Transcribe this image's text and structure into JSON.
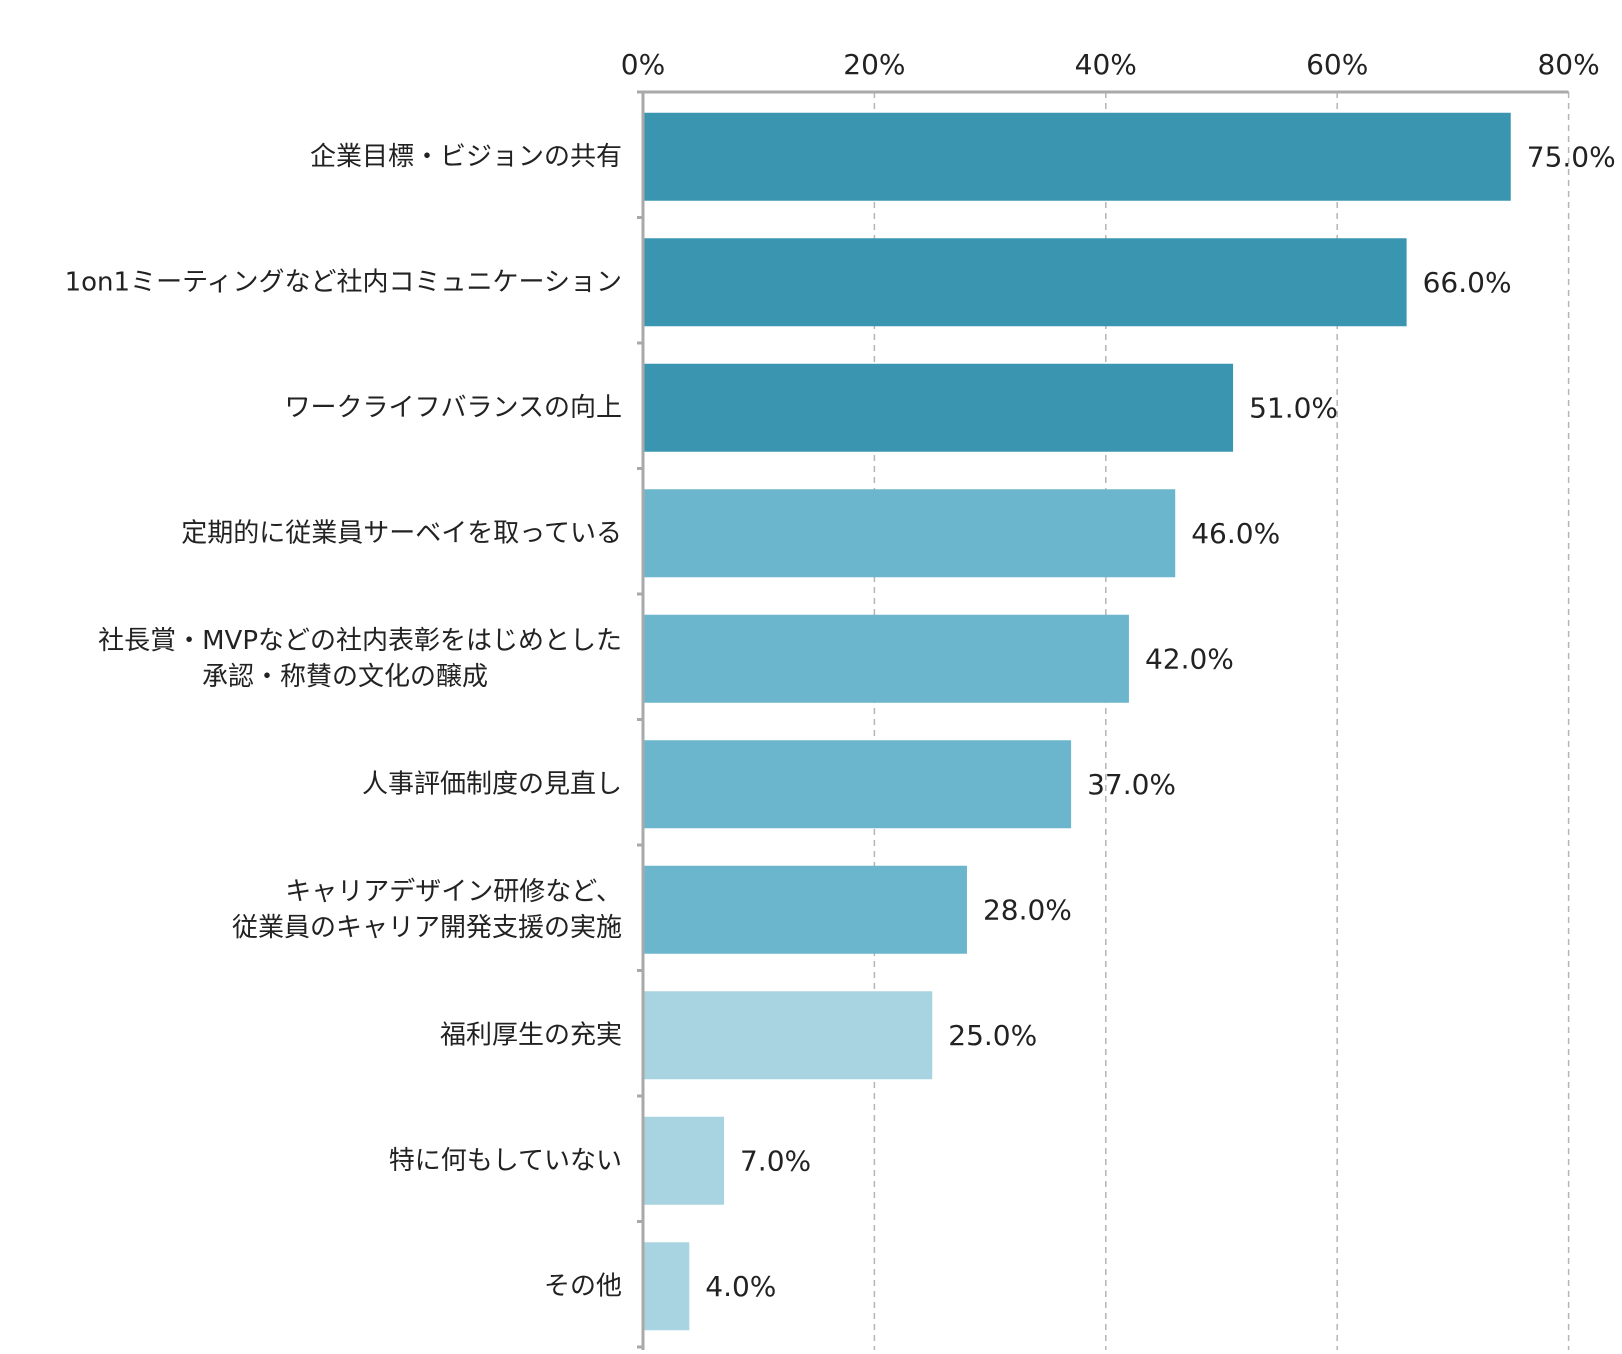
{
  "chart_data": {
    "type": "bar",
    "orientation": "horizontal",
    "categories": [
      [
        "企業目標・ビジョンの共有"
      ],
      [
        "1on1ミーティングなど社内コミュニケーション"
      ],
      [
        "ワークライフバランスの向上"
      ],
      [
        "定期的に従業員サーベイを取っている"
      ],
      [
        "社長賞・MVPなどの社内表彰をはじめとした",
        "承認・称賛の文化の醸成"
      ],
      [
        "人事評価制度の見直し"
      ],
      [
        "キャリアデザイン研修など、",
        "従業員のキャリア開発支援の実施"
      ],
      [
        "福利厚生の充実"
      ],
      [
        "特に何もしていない"
      ],
      [
        "その他"
      ]
    ],
    "values": [
      75.0,
      66.0,
      51.0,
      46.0,
      42.0,
      37.0,
      28.0,
      25.0,
      7.0,
      4.0
    ],
    "value_labels": [
      "75.0%",
      "66.0%",
      "51.0%",
      "46.0%",
      "42.0%",
      "37.0%",
      "28.0%",
      "25.0%",
      "7.0%",
      "4.0%"
    ],
    "bar_colors": [
      "#3a95b0",
      "#3a95b0",
      "#3a95b0",
      "#6cb6cd",
      "#6cb6cd",
      "#6cb6cd",
      "#6cb6cd",
      "#a8d4e1",
      "#a8d4e1",
      "#a8d4e1"
    ],
    "x_ticks": [
      0,
      20,
      40,
      60,
      80
    ],
    "x_tick_labels": [
      "0%",
      "20%",
      "40%",
      "60%",
      "80%"
    ],
    "xlim": [
      0,
      80
    ],
    "x_axis_position": "top",
    "grid": "vertical dashed",
    "title": "",
    "xlabel": "",
    "ylabel": ""
  },
  "colors": {
    "grid": "#b5b5b5",
    "axis": "#a9a9a9",
    "text": "#222222"
  }
}
